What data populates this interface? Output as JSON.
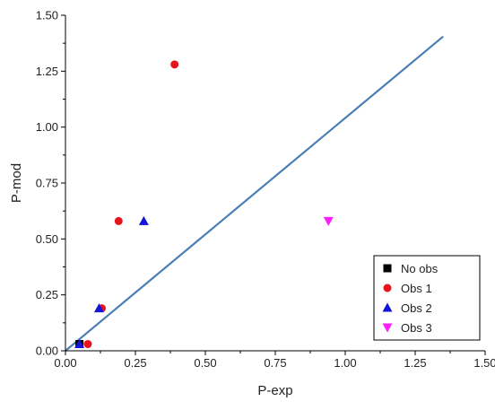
{
  "chart_data": {
    "type": "scatter",
    "xlabel": "P-exp",
    "ylabel": "P-mod",
    "xlim": [
      0,
      1.5
    ],
    "ylim": [
      0,
      1.5
    ],
    "xticks": [
      "0.00",
      "0.25",
      "0.50",
      "0.75",
      "1.00",
      "1.25",
      "1.50"
    ],
    "yticks": [
      "0.00",
      "0.25",
      "0.50",
      "0.75",
      "1.00",
      "1.25",
      "1.50"
    ],
    "grid": false,
    "legend_position": "bottom-right",
    "series": [
      {
        "name": "No obs",
        "marker": "square",
        "color": "#000000",
        "points": [
          [
            0.05,
            0.03
          ]
        ]
      },
      {
        "name": "Obs 1",
        "marker": "circle",
        "color": "#e8141b",
        "points": [
          [
            0.39,
            1.28
          ],
          [
            0.19,
            0.58
          ],
          [
            0.13,
            0.19
          ],
          [
            0.08,
            0.03
          ]
        ]
      },
      {
        "name": "Obs 2",
        "marker": "triangle-up",
        "color": "#1515d8",
        "points": [
          [
            0.28,
            0.58
          ],
          [
            0.12,
            0.19
          ],
          [
            0.05,
            0.03
          ]
        ]
      },
      {
        "name": "Obs 3",
        "marker": "triangle-down",
        "color": "#ff1cff",
        "points": [
          [
            0.94,
            0.58
          ]
        ]
      }
    ],
    "reference_line": {
      "x": [
        0,
        1.35
      ],
      "y": [
        0,
        1.405
      ],
      "color": "#4a7eb5"
    }
  }
}
